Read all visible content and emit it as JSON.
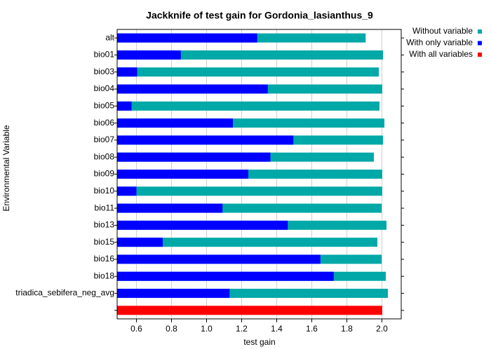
{
  "chart_data": {
    "type": "hbar_jackknife",
    "title": "Jackknife of test gain for Gordonia_lasianthus_9",
    "xlabel": "test gain",
    "ylabel": "Environmental Variable",
    "categories": [
      "alt",
      "bio01",
      "bio03",
      "bio04",
      "bio05",
      "bio06",
      "bio07",
      "bio08",
      "bio09",
      "bio10",
      "bio11",
      "bio13",
      "bio15",
      "bio16",
      "bio18",
      "triadica_sebifera_neg_avg",
      null
    ],
    "series": [
      {
        "name": "Without variable",
        "color": "#00a8a8",
        "values": [
          1.907,
          2.006,
          1.982,
          2.002,
          1.986,
          2.014,
          2.006,
          1.954,
          2.002,
          2.002,
          1.998,
          2.026,
          1.974,
          1.998,
          2.022,
          2.034,
          null
        ]
      },
      {
        "name": "With only variable",
        "color": "#0000ff",
        "values": [
          1.289,
          0.853,
          0.604,
          1.349,
          0.572,
          1.15,
          1.495,
          1.364,
          1.238,
          0.6,
          1.091,
          1.463,
          0.75,
          1.649,
          1.725,
          1.131,
          null
        ]
      },
      {
        "name": "With all variables",
        "color": "#ff0000",
        "values": [
          null,
          null,
          null,
          null,
          null,
          null,
          null,
          null,
          null,
          null,
          null,
          null,
          null,
          null,
          null,
          null,
          2.002
        ]
      }
    ],
    "xlim": [
      0.49,
      2.11
    ],
    "xticks": [
      0.6,
      0.8,
      {
        "value": 1,
        "label": "1.0"
      },
      1.2,
      1.4,
      1.6,
      1.8,
      {
        "value": 2,
        "label": "2.0"
      }
    ],
    "grid": true
  }
}
